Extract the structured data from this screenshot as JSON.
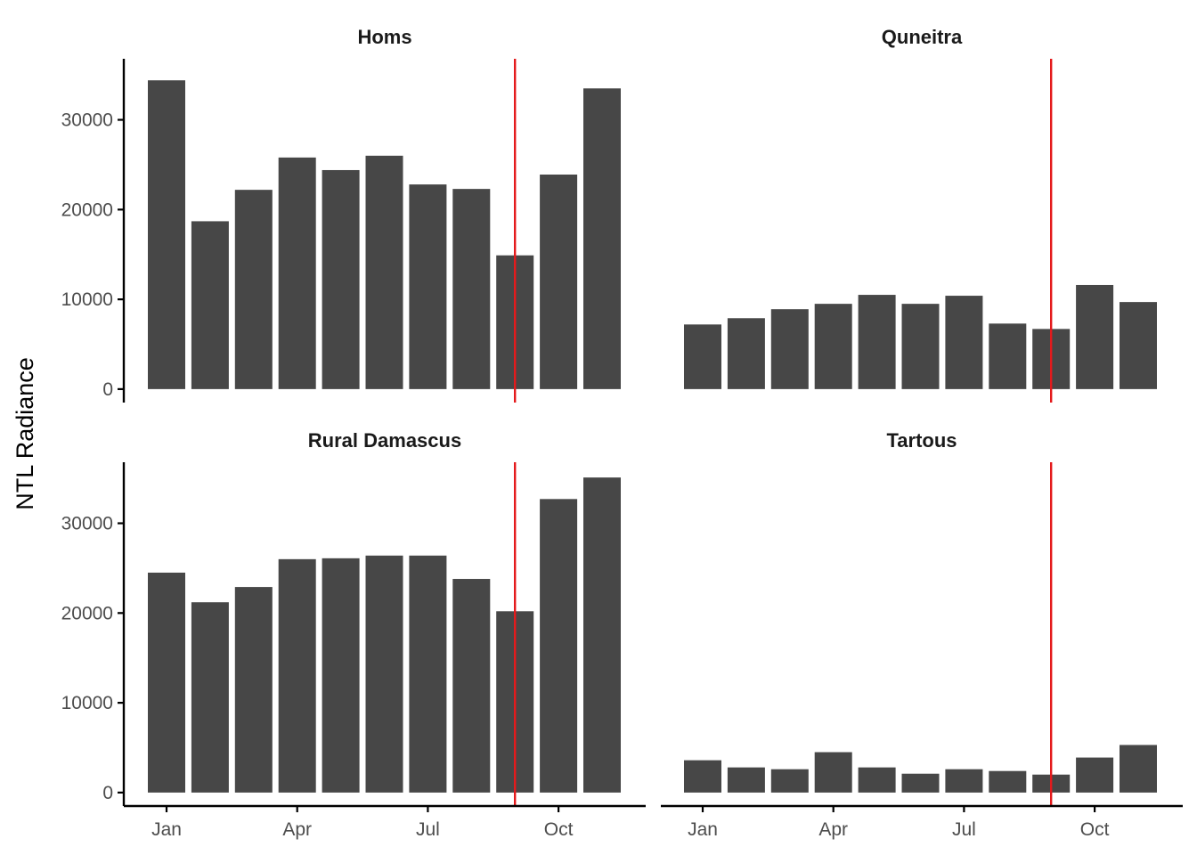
{
  "chart_data": {
    "type": "bar",
    "layout": "facet-2x2",
    "ylabel": "NTL Radiance",
    "x_tick_labels": [
      "Jan",
      "Apr",
      "Jul",
      "Oct"
    ],
    "x_tick_months": [
      1,
      4,
      7,
      10
    ],
    "months": [
      1,
      2,
      3,
      4,
      5,
      6,
      7,
      8,
      9,
      10,
      11
    ],
    "y_ticks": [
      0,
      10000,
      20000,
      30000
    ],
    "y_tick_labels": [
      "0",
      "10000",
      "20000",
      "30000"
    ],
    "ylim": [
      -1500,
      36800
    ],
    "vline_month": 9,
    "colors": {
      "bar": "#474747",
      "vline": "#e41a1c"
    },
    "panels": [
      {
        "title": "Homs",
        "values": [
          34400,
          18700,
          22200,
          25800,
          24400,
          26000,
          22800,
          22300,
          14900,
          23900,
          33500
        ]
      },
      {
        "title": "Quneitra",
        "values": [
          7200,
          7900,
          8900,
          9500,
          10500,
          9500,
          10400,
          7300,
          6700,
          11600,
          9700
        ]
      },
      {
        "title": "Rural Damascus",
        "values": [
          24500,
          21200,
          22900,
          26000,
          26100,
          26400,
          26400,
          23800,
          20200,
          32700,
          35100
        ]
      },
      {
        "title": "Tartous",
        "values": [
          3600,
          2800,
          2600,
          4500,
          2800,
          2100,
          2600,
          2400,
          2000,
          3900,
          5300
        ]
      }
    ]
  }
}
